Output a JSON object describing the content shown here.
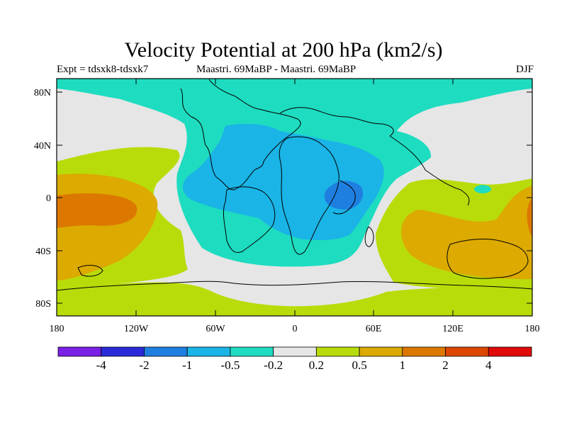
{
  "title": "Velocity Potential at 200 hPa (km2/s)",
  "left_subtitle": "Expt = tdsxk8-tdsxk7",
  "center_subtitle": "Maastri.  69MaBP - Maastri.  69MaBP",
  "right_subtitle": "DJF",
  "lat_ticks": [
    "80N",
    "40N",
    "0",
    "40S",
    "80S"
  ],
  "lon_ticks": [
    "180",
    "120W",
    "60W",
    "0",
    "60E",
    "120E",
    "180"
  ],
  "colorbar": {
    "colors": [
      "#7a1fe6",
      "#2a2ad8",
      "#1e7fe0",
      "#1ab4e6",
      "#1edcc0",
      "#e6e6e6",
      "#b8dc0a",
      "#dcaa00",
      "#dc7800",
      "#dc4600",
      "#e00a0a"
    ],
    "levels": [
      "-4",
      "-2",
      "-1",
      "-0.5",
      "-0.2",
      "0.2",
      "0.5",
      "1",
      "2",
      "4"
    ]
  },
  "map_colors": {
    "lightgray": "#e6e6e6",
    "teal": "#1edcc0",
    "cyan": "#1ab4e6",
    "blue": "#1e7fe0",
    "lime": "#b8dc0a",
    "gold": "#dcaa00",
    "orange": "#dc7800"
  }
}
